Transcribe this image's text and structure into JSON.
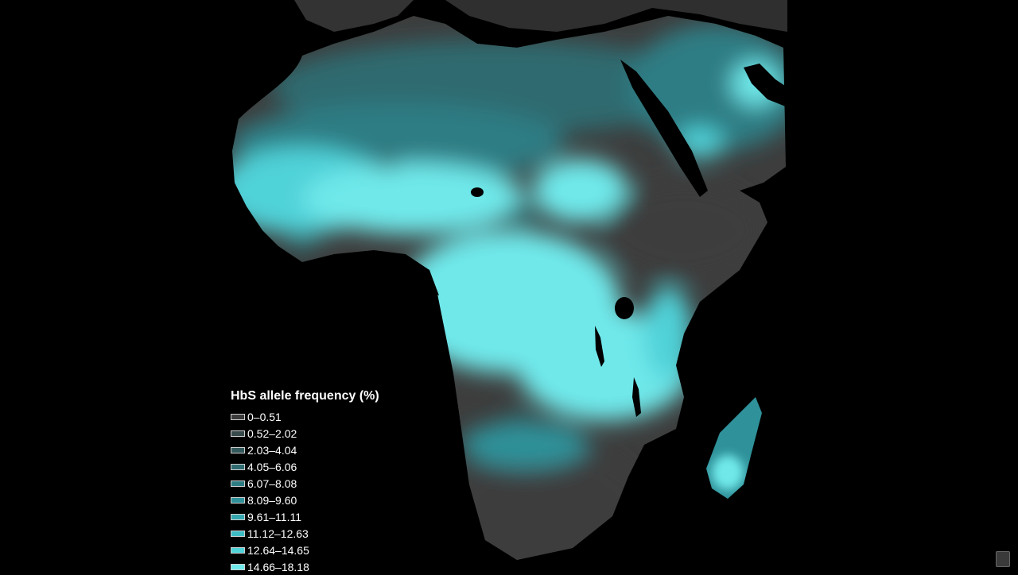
{
  "legend": {
    "title": "HbS allele frequency (%)",
    "items": [
      {
        "label": "0–0.51",
        "color": "#3b3b3b"
      },
      {
        "label": "0.52–2.02",
        "color": "#374a4c"
      },
      {
        "label": "2.03–4.04",
        "color": "#33595c"
      },
      {
        "label": "4.05–6.06",
        "color": "#2f6b70"
      },
      {
        "label": "6.07–8.08",
        "color": "#2f7d84"
      },
      {
        "label": "8.09–9.60",
        "color": "#2f9199"
      },
      {
        "label": "9.61–11.11",
        "color": "#35a6ae"
      },
      {
        "label": "11.12–12.63",
        "color": "#3dbcc4"
      },
      {
        "label": "12.64–14.65",
        "color": "#4fd2d8"
      },
      {
        "label": "14.66–18.18",
        "color": "#6fe8ea"
      }
    ]
  },
  "map": {
    "land_low_color": "#3d3d3d",
    "water_color": "#000000",
    "high_color": "#73eced"
  },
  "icons": {
    "corner": "trash-icon"
  }
}
